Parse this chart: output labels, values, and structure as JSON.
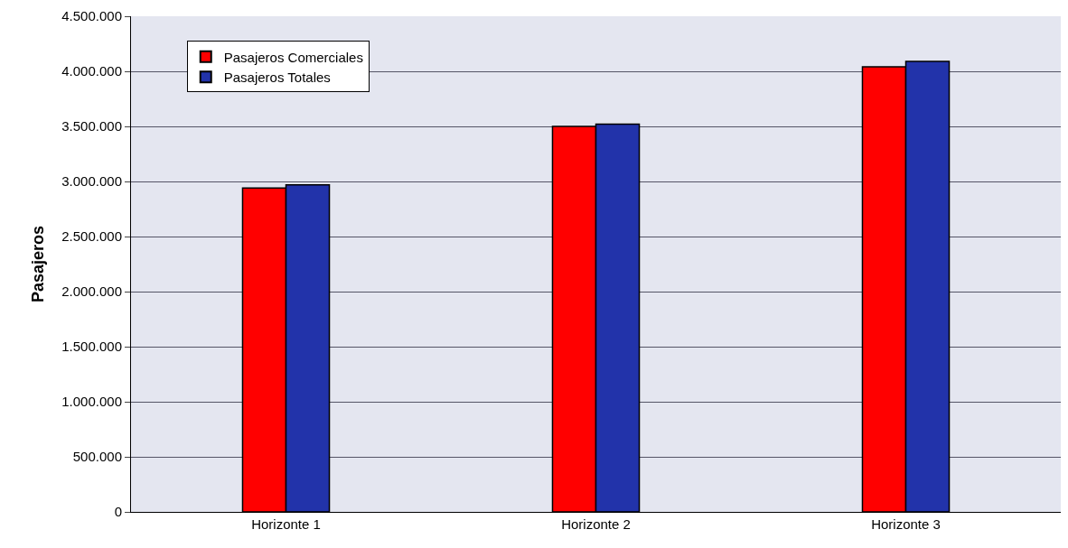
{
  "chart_data": {
    "type": "bar",
    "ylabel": "Pasajeros",
    "categories": [
      "Horizonte 1",
      "Horizonte 2",
      "Horizonte 3"
    ],
    "series": [
      {
        "name": "Pasajeros Comerciales",
        "color": "#ff0000",
        "values": [
          2940000,
          3500000,
          4040000
        ]
      },
      {
        "name": "Pasajeros Totales",
        "color": "#2233aa",
        "values": [
          2970000,
          3520000,
          4090000
        ]
      }
    ],
    "ylim": [
      0,
      4500000
    ],
    "yticks": [
      {
        "value": 0,
        "label": "0"
      },
      {
        "value": 500000,
        "label": "500.000"
      },
      {
        "value": 1000000,
        "label": "1.000.000"
      },
      {
        "value": 1500000,
        "label": "1.500.000"
      },
      {
        "value": 2000000,
        "label": "2.000.000"
      },
      {
        "value": 2500000,
        "label": "2.500.000"
      },
      {
        "value": 3000000,
        "label": "3.000.000"
      },
      {
        "value": 3500000,
        "label": "3.500.000"
      },
      {
        "value": 4000000,
        "label": "4.000.000"
      },
      {
        "value": 4500000,
        "label": "4.500.000"
      }
    ],
    "grid": "y",
    "legend": "top left"
  }
}
